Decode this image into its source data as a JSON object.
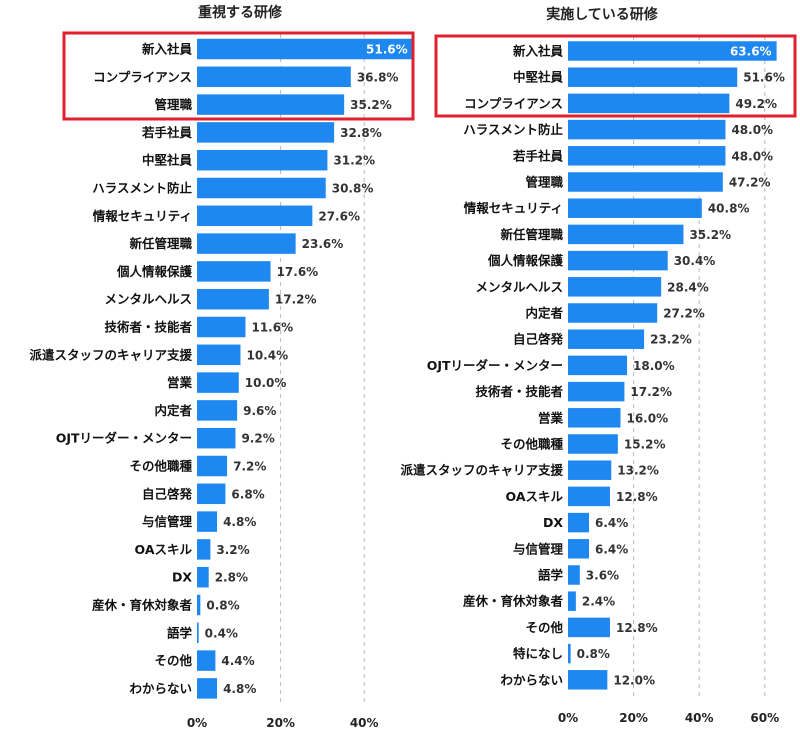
{
  "chart_data": [
    {
      "type": "bar",
      "orientation": "horizontal",
      "title": "重視する研修",
      "xlim": [
        0,
        50
      ],
      "xticks": [
        0,
        20,
        40
      ],
      "tick_labels": [
        "0%",
        "20%",
        "40%"
      ],
      "grid": true,
      "bar_color": "#1e88f0",
      "highlight_color": "#e0202e",
      "highlighted_categories": [
        "新入社員",
        "コンプライアンス",
        "管理職"
      ],
      "categories": [
        "新入社員",
        "コンプライアンス",
        "管理職",
        "若手社員",
        "中堅社員",
        "ハラスメント防止",
        "情報セキュリティ",
        "新任管理職",
        "個人情報保護",
        "メンタルヘルス",
        "技術者・技能者",
        "派遣スタッフのキャリア支援",
        "営業",
        "内定者",
        "OJTリーダー・メンター",
        "その他職種",
        "自己啓発",
        "与信管理",
        "OAスキル",
        "DX",
        "産休・育休対象者",
        "語学",
        "その他",
        "わからない"
      ],
      "values": [
        51.6,
        36.8,
        35.2,
        32.8,
        31.2,
        30.8,
        27.6,
        23.6,
        17.6,
        17.2,
        11.6,
        10.4,
        10.0,
        9.6,
        9.2,
        7.2,
        6.8,
        4.8,
        3.2,
        2.8,
        0.8,
        0.4,
        4.4,
        4.8
      ],
      "value_labels": [
        "51.6%",
        "36.8%",
        "35.2%",
        "32.8%",
        "31.2%",
        "30.8%",
        "27.6%",
        "23.6%",
        "17.6%",
        "17.2%",
        "11.6%",
        "10.4%",
        "10.0%",
        "9.6%",
        "9.2%",
        "7.2%",
        "6.8%",
        "4.8%",
        "3.2%",
        "2.8%",
        "0.8%",
        "0.4%",
        "4.4%",
        "4.8%"
      ]
    },
    {
      "type": "bar",
      "orientation": "horizontal",
      "title": "実施している研修",
      "xlim": [
        0,
        66
      ],
      "xticks": [
        0,
        20,
        40,
        60
      ],
      "tick_labels": [
        "0%",
        "20%",
        "40%",
        "60%"
      ],
      "grid": true,
      "bar_color": "#1e88f0",
      "highlight_color": "#e0202e",
      "highlighted_categories": [
        "新入社員",
        "中堅社員",
        "コンプライアンス"
      ],
      "categories": [
        "新入社員",
        "中堅社員",
        "コンプライアンス",
        "ハラスメント防止",
        "若手社員",
        "管理職",
        "情報セキュリティ",
        "新任管理職",
        "個人情報保護",
        "メンタルヘルス",
        "内定者",
        "自己啓発",
        "OJTリーダー・メンター",
        "技術者・技能者",
        "営業",
        "その他職種",
        "派遣スタッフのキャリア支援",
        "OAスキル",
        "DX",
        "与信管理",
        "語学",
        "産休・育休対象者",
        "その他",
        "特になし",
        "わからない"
      ],
      "values": [
        63.6,
        51.6,
        49.2,
        48.0,
        48.0,
        47.2,
        40.8,
        35.2,
        30.4,
        28.4,
        27.2,
        23.2,
        18.0,
        17.2,
        16.0,
        15.2,
        13.2,
        12.8,
        6.4,
        6.4,
        3.6,
        2.4,
        12.8,
        0.8,
        12.0
      ],
      "value_labels": [
        "63.6%",
        "51.6%",
        "49.2%",
        "48.0%",
        "48.0%",
        "47.2%",
        "40.8%",
        "35.2%",
        "30.4%",
        "28.4%",
        "27.2%",
        "23.2%",
        "18.0%",
        "17.2%",
        "16.0%",
        "15.2%",
        "13.2%",
        "12.8%",
        "6.4%",
        "6.4%",
        "3.6%",
        "2.4%",
        "12.8%",
        "0.8%",
        "12.0%"
      ]
    }
  ]
}
